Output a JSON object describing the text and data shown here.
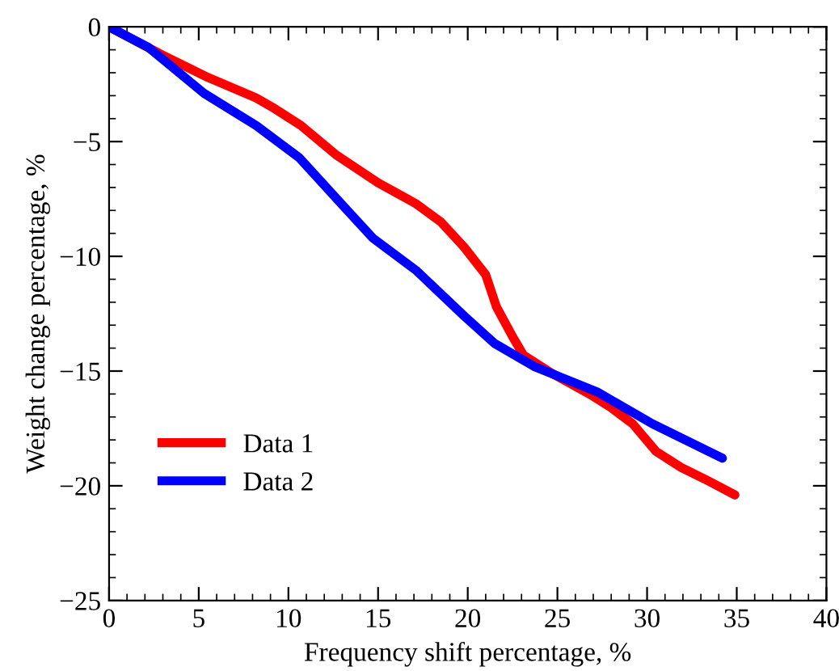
{
  "chart_data": {
    "type": "line",
    "xlabel": "Frequency shift percentage, %",
    "ylabel": "Weight change percentage, %",
    "xlim": [
      0,
      40
    ],
    "ylim": [
      -25,
      0
    ],
    "xticks": [
      0,
      5,
      10,
      15,
      20,
      25,
      30,
      35,
      40
    ],
    "yticks": [
      -25,
      -20,
      -15,
      -10,
      -5,
      0
    ],
    "legend": "bottom left",
    "grid": false,
    "marker": "none",
    "line_style": "solid",
    "series": [
      {
        "name": "Data 1",
        "color": "#ff0000",
        "x": [
          0,
          2.9,
          5.5,
          8.2,
          9.1,
          10.7,
          12.7,
          15,
          17.1,
          18.5,
          19.8,
          21,
          21.6,
          22.5,
          23.1,
          24.7,
          27,
          28,
          29.2,
          30.5,
          31.9,
          33.2,
          34.9
        ],
        "values": [
          0,
          -1.2,
          -2.2,
          -3.1,
          -3.5,
          -4.3,
          -5.6,
          -6.8,
          -7.7,
          -8.5,
          -9.6,
          -10.8,
          -12.2,
          -13.5,
          -14.3,
          -15.1,
          -16.1,
          -16.6,
          -17.3,
          -18.5,
          -19.2,
          -19.7,
          -20.4
        ]
      },
      {
        "name": "Data 2",
        "color": "#0000ff",
        "x": [
          0,
          2.2,
          5.3,
          8.2,
          10.6,
          12.7,
          14.7,
          17.1,
          19.8,
          21.5,
          23.7,
          27.2,
          30.3,
          34.2
        ],
        "values": [
          0,
          -0.9,
          -2.9,
          -4.3,
          -5.7,
          -7.5,
          -9.2,
          -10.6,
          -12.6,
          -13.8,
          -14.8,
          -15.9,
          -17.3,
          -18.8
        ]
      }
    ]
  }
}
